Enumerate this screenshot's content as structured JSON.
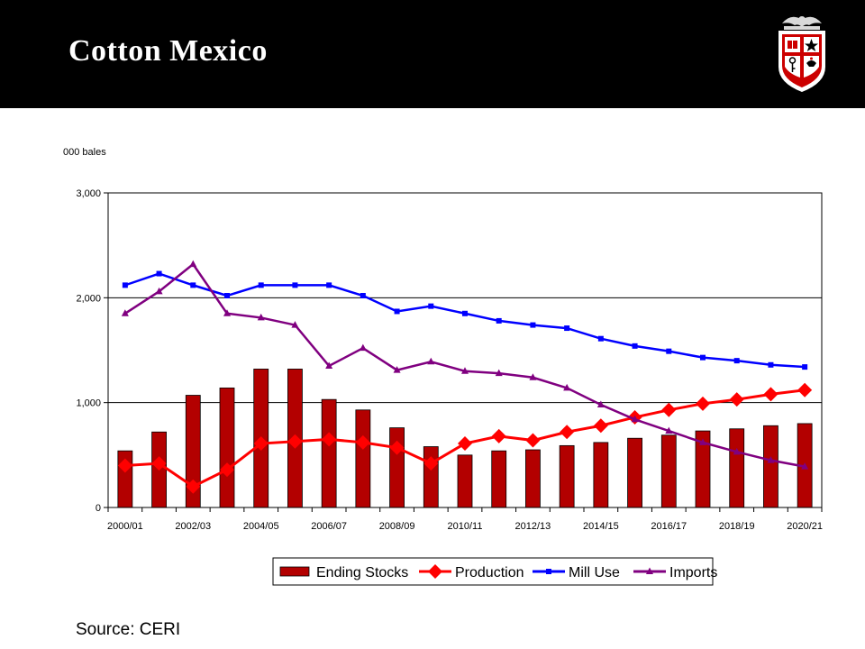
{
  "slide": {
    "title": "Cotton Mexico",
    "source": "Source: CERI"
  },
  "colors": {
    "header_bg": "#000000",
    "ending_stocks": "#B30000",
    "production": "#FF0000",
    "mill_use": "#0000FF",
    "imports": "#800080"
  },
  "chart_data": {
    "type": "bar",
    "title": "",
    "ylabel": "000 bales",
    "xlabel": "",
    "ylim": [
      0,
      3000
    ],
    "yticks": [
      0,
      1000,
      2000,
      3000
    ],
    "ytick_labels": [
      "0",
      "1,000",
      "2,000",
      "3,000"
    ],
    "grid": "horizontal",
    "legend_position": "bottom",
    "categories": [
      "2000/01",
      "2001/02",
      "2002/03",
      "2003/04",
      "2004/05",
      "2005/06",
      "2006/07",
      "2007/08",
      "2008/09",
      "2009/10",
      "2010/11",
      "2011/12",
      "2012/13",
      "2013/14",
      "2014/15",
      "2015/16",
      "2016/17",
      "2017/18",
      "2018/19",
      "2019/20",
      "2020/21"
    ],
    "xtick_labels": [
      "2000/01",
      "2002/03",
      "2004/05",
      "2006/07",
      "2008/09",
      "2010/11",
      "2012/13",
      "2014/15",
      "2016/17",
      "2018/19",
      "2020/21"
    ],
    "series": [
      {
        "name": "Ending Stocks",
        "kind": "bar",
        "color": "#B30000",
        "values": [
          540,
          720,
          1070,
          1140,
          1320,
          1320,
          1030,
          930,
          760,
          580,
          500,
          540,
          550,
          590,
          620,
          660,
          690,
          730,
          750,
          780,
          800
        ]
      },
      {
        "name": "Production",
        "kind": "line",
        "marker": "diamond",
        "color": "#FF0000",
        "values": [
          400,
          420,
          200,
          360,
          610,
          630,
          650,
          620,
          570,
          420,
          610,
          680,
          640,
          720,
          780,
          860,
          930,
          990,
          1030,
          1080,
          1120
        ]
      },
      {
        "name": "Mill Use",
        "kind": "line",
        "marker": "square",
        "color": "#0000FF",
        "values": [
          2120,
          2230,
          2120,
          2020,
          2120,
          2120,
          2120,
          2020,
          1870,
          1920,
          1850,
          1780,
          1740,
          1710,
          1610,
          1540,
          1490,
          1430,
          1400,
          1360,
          1340
        ]
      },
      {
        "name": "Imports",
        "kind": "line",
        "marker": "triangle",
        "color": "#800080",
        "values": [
          1850,
          2060,
          2320,
          1850,
          1810,
          1740,
          1350,
          1520,
          1310,
          1390,
          1300,
          1280,
          1240,
          1140,
          980,
          840,
          730,
          620,
          530,
          450,
          390
        ]
      }
    ]
  }
}
